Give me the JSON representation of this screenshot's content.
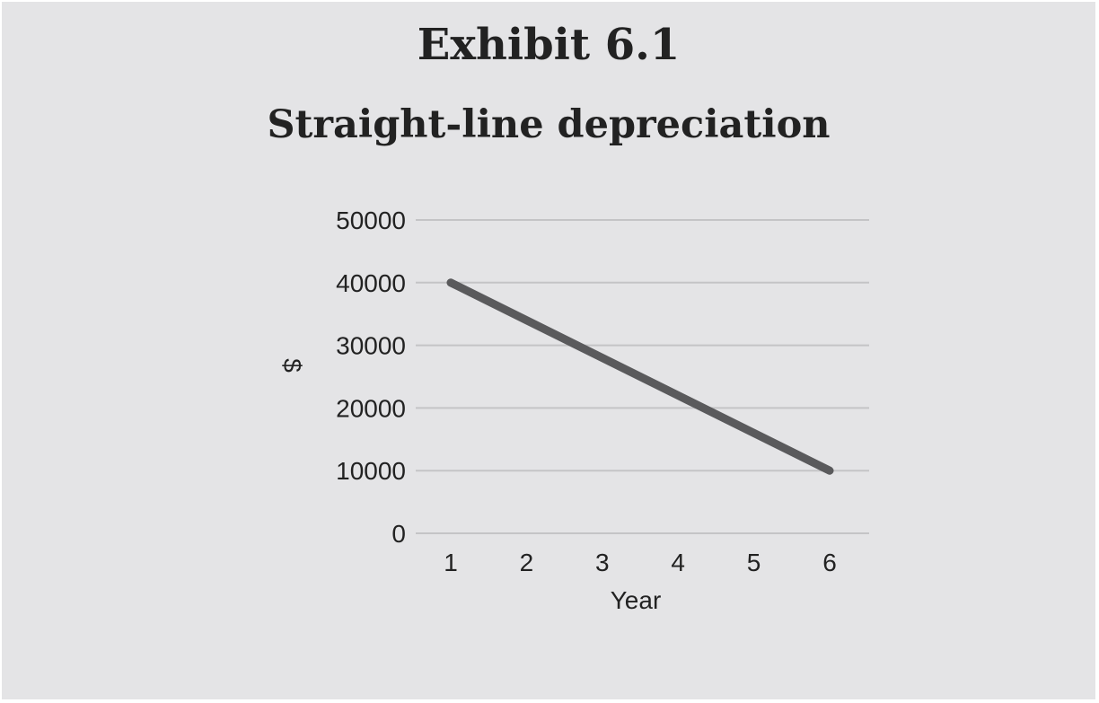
{
  "chart_data": {
    "type": "line",
    "title": "Exhibit 6.1",
    "subtitle": "Straight-line depreciation",
    "xlabel": "Year",
    "ylabel": "$",
    "x": [
      1,
      2,
      3,
      4,
      5,
      6
    ],
    "ylim": [
      0,
      50000
    ],
    "yticks": [
      0,
      10000,
      20000,
      30000,
      40000,
      50000
    ],
    "grid": true,
    "series": [
      {
        "values": [
          40000,
          34000,
          28000,
          22000,
          16000,
          10000
        ]
      }
    ],
    "colors": {
      "background": "#e4e4e6",
      "line": "#5a5a5c",
      "grid": "#c4c4c6",
      "text": "#222222"
    }
  }
}
